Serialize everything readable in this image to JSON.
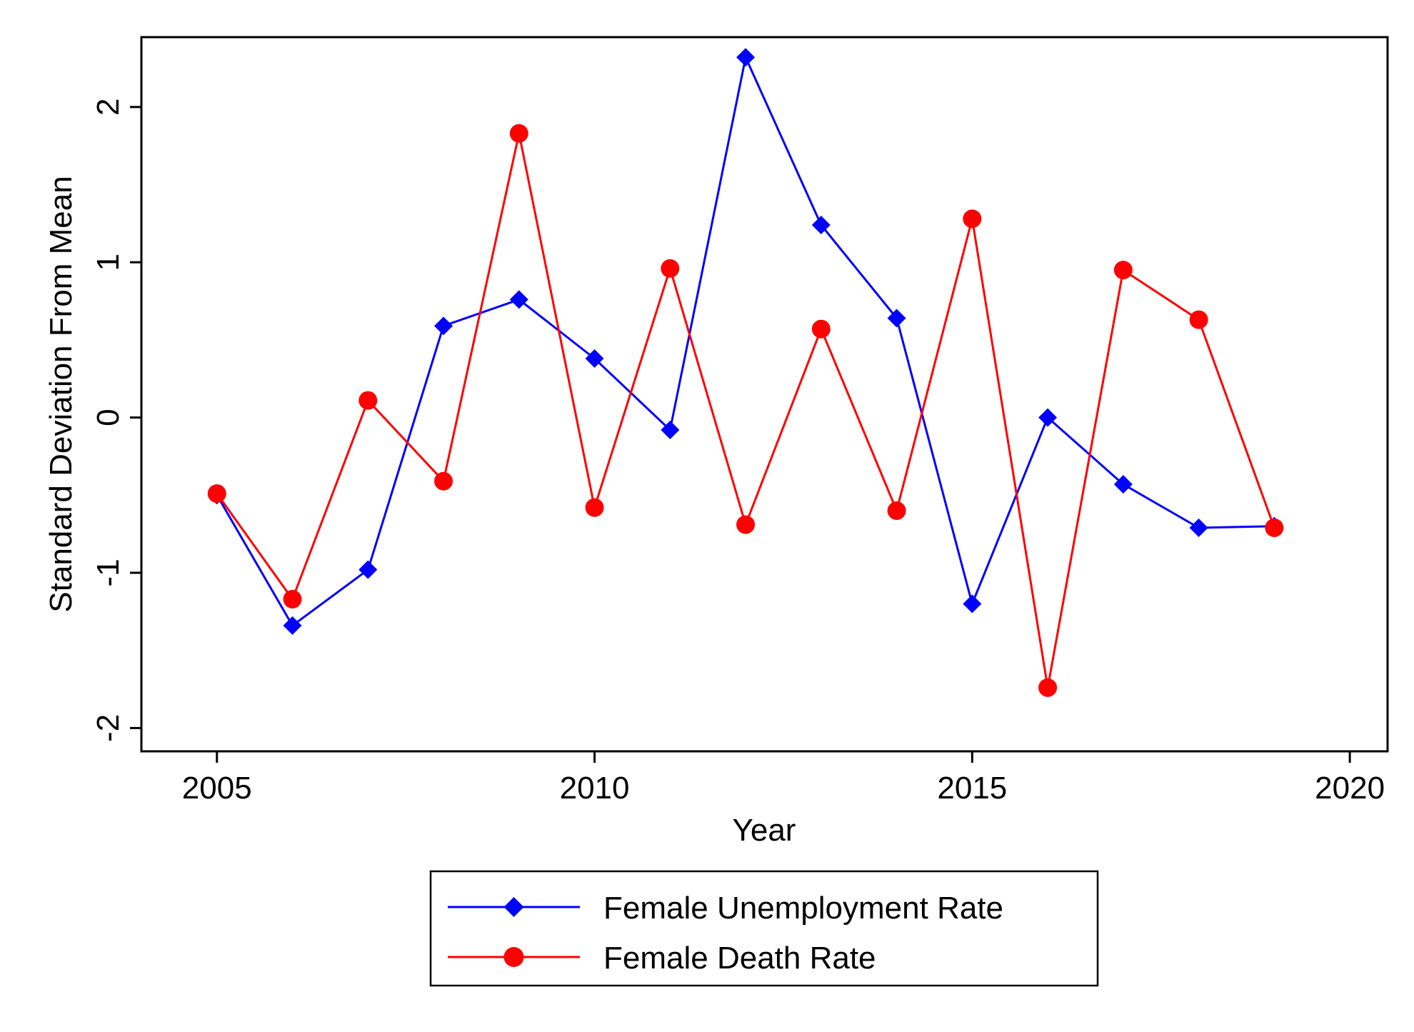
{
  "chart_data": {
    "type": "line",
    "title": "",
    "xlabel": "Year",
    "ylabel": "Standard Deviation From Mean",
    "xlim": [
      2004,
      2020.5
    ],
    "ylim": [
      -2.15,
      2.45
    ],
    "x_ticks": [
      2005,
      2010,
      2015,
      2020
    ],
    "y_ticks": [
      -2,
      -1,
      0,
      1,
      2
    ],
    "grid": false,
    "legend_position": "bottom",
    "x": [
      2005,
      2006,
      2007,
      2008,
      2009,
      2010,
      2011,
      2012,
      2013,
      2014,
      2015,
      2016,
      2017,
      2018,
      2019
    ],
    "series": [
      {
        "name": "Female Unemployment Rate",
        "color": "#0000ff",
        "marker": "diamond",
        "values": [
          -0.5,
          -1.34,
          -0.98,
          0.59,
          0.76,
          0.38,
          -0.08,
          2.32,
          1.24,
          0.64,
          -1.2,
          0.0,
          -0.43,
          -0.71,
          -0.7
        ]
      },
      {
        "name": "Female Death Rate",
        "color": "#ff0000",
        "marker": "circle",
        "values": [
          -0.49,
          -1.17,
          0.11,
          -0.41,
          1.83,
          -0.58,
          0.96,
          -0.69,
          0.57,
          -0.6,
          1.28,
          -1.74,
          0.95,
          0.63,
          -0.71
        ]
      }
    ]
  }
}
